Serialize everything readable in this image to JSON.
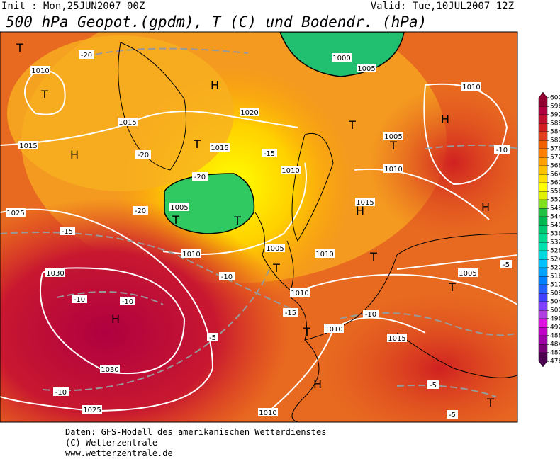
{
  "header": {
    "init": "Init : Mon,25JUN2007 00Z",
    "valid": "Valid: Tue,10JUL2007 12Z",
    "title": "500 hPa Geopot.(gpdm), T (C) und Bodendr. (hPa)"
  },
  "colorbar": {
    "labels": [
      476,
      480,
      484,
      488,
      492,
      496,
      500,
      504,
      508,
      512,
      516,
      520,
      524,
      528,
      532,
      536,
      540,
      544,
      548,
      552,
      556,
      560,
      564,
      568,
      572,
      576,
      580,
      584,
      588,
      592,
      596,
      600
    ],
    "colors": [
      "#4b0050",
      "#7a007a",
      "#a000a8",
      "#c000c8",
      "#e010e0",
      "#b040e0",
      "#8040ff",
      "#4040ff",
      "#2060ff",
      "#0080ff",
      "#00a0ff",
      "#00c0ff",
      "#00d8e0",
      "#00e0b0",
      "#00d890",
      "#00c870",
      "#00b850",
      "#20c040",
      "#80e020",
      "#e0f000",
      "#ffff00",
      "#ffe000",
      "#ffc000",
      "#ffa000",
      "#ff8000",
      "#f06000",
      "#e04020",
      "#d02020",
      "#c01030",
      "#b00040",
      "#900030"
    ]
  },
  "map": {
    "centers": [
      "H",
      "H",
      "H",
      "H",
      "H",
      "H",
      "H",
      "T",
      "T",
      "T",
      "T",
      "T",
      "T",
      "T",
      "T",
      "T",
      "T",
      "T",
      "T"
    ],
    "isobars": [
      "1030",
      "1030",
      "1025",
      "1025",
      "1010",
      "1015",
      "1005",
      "1010",
      "1005",
      "1010",
      "1010",
      "1010",
      "1015",
      "1010",
      "1005",
      "1005",
      "1010",
      "1010",
      "1010",
      "1015",
      "1020",
      "1015",
      "1000",
      "1005",
      "1015"
    ],
    "temps": [
      "-20",
      "-15",
      "-10",
      "-10",
      "-5",
      "-10",
      "-15",
      "-10",
      "-10",
      "-5",
      "-20",
      "-15",
      "-20",
      "-20",
      "-5",
      "-5",
      "-10"
    ]
  },
  "footer": {
    "line1": "Daten: GFS-Modell des amerikanischen Wetterdienstes",
    "line2": "(C) Wetterzentrale",
    "line3": "www.wetterzentrale.de"
  }
}
